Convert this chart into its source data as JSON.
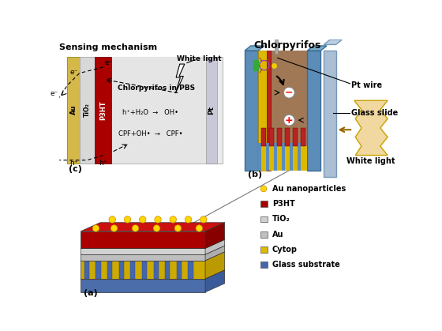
{
  "bg_color": "#ffffff",
  "sensing_title": "Sensing mechanism",
  "chlorpyrifos_label": "Chlorpyrifos",
  "panel_labels": [
    "(a)",
    "(b)",
    "(c)"
  ],
  "legend_items": [
    "Au nanoparticles",
    "P3HT",
    "TiO₂",
    "Au",
    "Cytop",
    "Glass substrate"
  ],
  "reactions": [
    "h⁺+H₂O  →   OH•",
    "CPF+OH•  →   CPF•"
  ],
  "white_light": "White light",
  "chlorpyrifos_pbs": "Chlorpyrifos in PBS",
  "pt_wire_label": "Pt wire",
  "glass_slide_label": "Glass slide",
  "white_light2": "White light",
  "colors": {
    "au_electrode": "#D4B84A",
    "tio2": "#D8D8D8",
    "p3ht": "#AA0000",
    "pt_electrode": "#BBBBCC",
    "solution_bg": "#E0E0E0",
    "panel_c_bg": "#EBEBEB",
    "blue_frame": "#5B8DB8",
    "blue_frame_dark": "#3A6A96",
    "yellow_layer": "#DDB800",
    "red_layer": "#BB2222",
    "brown_solution": "#A07855",
    "glass_back": "#8AAFC8",
    "pt_wire_color": "#AAAAAA",
    "nanoparticle": "#FFD700",
    "cytop_yellow": "#DDBB00",
    "glass_sub_blue": "#4466AA",
    "au_layer": "#C8A850",
    "tio2_layer": "#CCCCCC",
    "p3ht_layer": "#BB0000",
    "wavy_fill": "#F0D8A0",
    "wavy_edge": "#C8A000"
  }
}
